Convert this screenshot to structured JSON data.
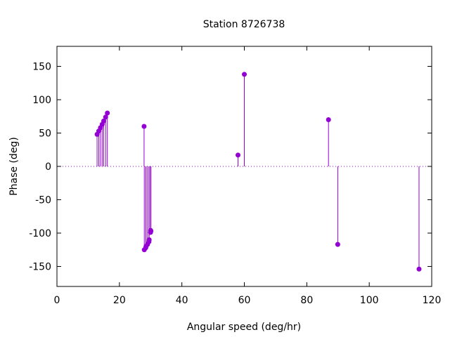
{
  "chart_data": {
    "type": "stem",
    "title": "Station 8726738",
    "xlabel": "Angular speed (deg/hr)",
    "ylabel": "Phase (deg)",
    "xlim": [
      0,
      120
    ],
    "ylim": [
      -180,
      180
    ],
    "xticks": [
      0,
      20,
      40,
      60,
      80,
      100,
      120
    ],
    "yticks": [
      -150,
      -100,
      -50,
      0,
      50,
      100,
      150
    ],
    "zero_line": "dotted",
    "color": "#9400d3",
    "grid": false,
    "points": [
      {
        "x": 12.85,
        "y": 48
      },
      {
        "x": 13.4,
        "y": 53
      },
      {
        "x": 13.94,
        "y": 58
      },
      {
        "x": 14.49,
        "y": 63
      },
      {
        "x": 14.96,
        "y": 68
      },
      {
        "x": 15.59,
        "y": 74
      },
      {
        "x": 16.14,
        "y": 80
      },
      {
        "x": 27.9,
        "y": 60
      },
      {
        "x": 27.97,
        "y": -125
      },
      {
        "x": 28.44,
        "y": -122
      },
      {
        "x": 28.51,
        "y": -120
      },
      {
        "x": 28.99,
        "y": -117
      },
      {
        "x": 29.46,
        "y": -113
      },
      {
        "x": 29.53,
        "y": -110
      },
      {
        "x": 29.96,
        "y": -99
      },
      {
        "x": 30.0,
        "y": -96
      },
      {
        "x": 30.08,
        "y": -97
      },
      {
        "x": 57.97,
        "y": 17
      },
      {
        "x": 60.0,
        "y": 138
      },
      {
        "x": 86.95,
        "y": 70
      },
      {
        "x": 89.91,
        "y": -117
      },
      {
        "x": 115.94,
        "y": -154
      }
    ]
  }
}
